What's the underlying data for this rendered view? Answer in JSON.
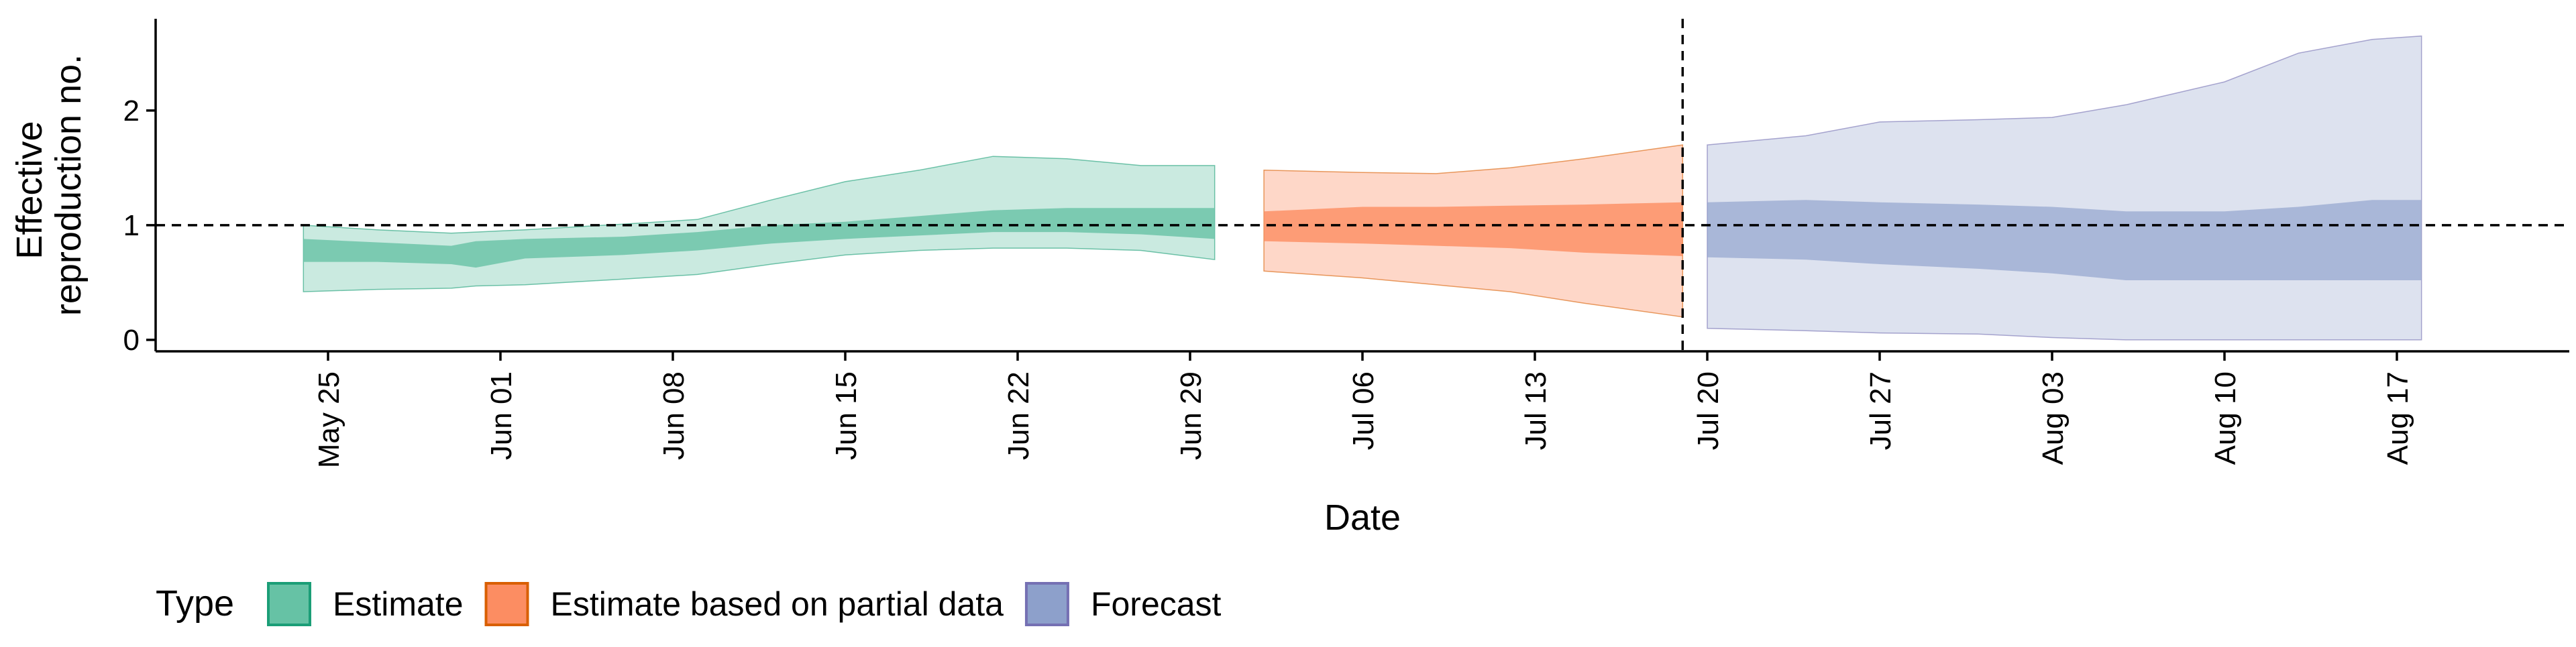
{
  "chart_data": {
    "type": "area",
    "xlabel": "Date",
    "ylabel": [
      "Effective",
      "reproduction no."
    ],
    "x_axis_type": "date",
    "xlim": [
      "2020-05-18",
      "2020-08-24"
    ],
    "ylim": [
      -0.1,
      2.8
    ],
    "y_ticks": [
      0,
      1,
      2
    ],
    "x_ticks": [
      {
        "date": "2020-05-25",
        "label": "May 25"
      },
      {
        "date": "2020-06-01",
        "label": "Jun 01"
      },
      {
        "date": "2020-06-08",
        "label": "Jun 08"
      },
      {
        "date": "2020-06-15",
        "label": "Jun 15"
      },
      {
        "date": "2020-06-22",
        "label": "Jun 22"
      },
      {
        "date": "2020-06-29",
        "label": "Jun 29"
      },
      {
        "date": "2020-07-06",
        "label": "Jul 06"
      },
      {
        "date": "2020-07-13",
        "label": "Jul 13"
      },
      {
        "date": "2020-07-20",
        "label": "Jul 20"
      },
      {
        "date": "2020-07-27",
        "label": "Jul 27"
      },
      {
        "date": "2020-08-03",
        "label": "Aug 03"
      },
      {
        "date": "2020-08-10",
        "label": "Aug 10"
      },
      {
        "date": "2020-08-17",
        "label": "Aug 17"
      }
    ],
    "reference_lines": {
      "horizontal_y": 1,
      "vertical_date": "2020-07-19"
    },
    "grid": false,
    "legend": {
      "title": "Type",
      "position": "bottom"
    },
    "series": [
      {
        "name": "Estimate",
        "fill_color": "#66c2a5",
        "line_color": "#1b9e77",
        "points": [
          {
            "date": "2020-05-24",
            "lower90": 0.42,
            "upper90": 1.0,
            "lower50": 0.68,
            "upper50": 0.88
          },
          {
            "date": "2020-05-27",
            "lower90": 0.44,
            "upper90": 0.96,
            "lower50": 0.68,
            "upper50": 0.85
          },
          {
            "date": "2020-05-30",
            "lower90": 0.45,
            "upper90": 0.93,
            "lower50": 0.66,
            "upper50": 0.82
          },
          {
            "date": "2020-05-31",
            "lower90": 0.47,
            "upper90": 0.94,
            "lower50": 0.63,
            "upper50": 0.86
          },
          {
            "date": "2020-06-02",
            "lower90": 0.48,
            "upper90": 0.96,
            "lower50": 0.71,
            "upper50": 0.88
          },
          {
            "date": "2020-06-06",
            "lower90": 0.53,
            "upper90": 1.01,
            "lower50": 0.74,
            "upper50": 0.9
          },
          {
            "date": "2020-06-09",
            "lower90": 0.57,
            "upper90": 1.05,
            "lower50": 0.78,
            "upper50": 0.94
          },
          {
            "date": "2020-06-12",
            "lower90": 0.66,
            "upper90": 1.22,
            "lower50": 0.84,
            "upper50": 1.0
          },
          {
            "date": "2020-06-15",
            "lower90": 0.74,
            "upper90": 1.38,
            "lower50": 0.88,
            "upper50": 1.03
          },
          {
            "date": "2020-06-18",
            "lower90": 0.78,
            "upper90": 1.48,
            "lower50": 0.91,
            "upper50": 1.08
          },
          {
            "date": "2020-06-21",
            "lower90": 0.8,
            "upper90": 1.6,
            "lower50": 0.94,
            "upper50": 1.13
          },
          {
            "date": "2020-06-24",
            "lower90": 0.8,
            "upper90": 1.58,
            "lower50": 0.94,
            "upper50": 1.15
          },
          {
            "date": "2020-06-27",
            "lower90": 0.78,
            "upper90": 1.52,
            "lower50": 0.92,
            "upper50": 1.15
          },
          {
            "date": "2020-06-30",
            "lower90": 0.7,
            "upper90": 1.52,
            "lower50": 0.88,
            "upper50": 1.15
          }
        ]
      },
      {
        "name": "Estimate based on partial data",
        "fill_color": "#fc8d62",
        "line_color": "#d95f02",
        "points": [
          {
            "date": "2020-07-02",
            "lower90": 0.6,
            "upper90": 1.48,
            "lower50": 0.86,
            "upper50": 1.12
          },
          {
            "date": "2020-07-06",
            "lower90": 0.54,
            "upper90": 1.46,
            "lower50": 0.84,
            "upper50": 1.16
          },
          {
            "date": "2020-07-09",
            "lower90": 0.48,
            "upper90": 1.45,
            "lower50": 0.82,
            "upper50": 1.16
          },
          {
            "date": "2020-07-12",
            "lower90": 0.42,
            "upper90": 1.5,
            "lower50": 0.8,
            "upper50": 1.17
          },
          {
            "date": "2020-07-15",
            "lower90": 0.32,
            "upper90": 1.58,
            "lower50": 0.76,
            "upper50": 1.18
          },
          {
            "date": "2020-07-19",
            "lower90": 0.2,
            "upper90": 1.7,
            "lower50": 0.73,
            "upper50": 1.2
          }
        ]
      },
      {
        "name": "Forecast",
        "fill_color": "#8da0cb",
        "line_color": "#7570b3",
        "points": [
          {
            "date": "2020-07-20",
            "lower90": 0.1,
            "upper90": 1.7,
            "lower50": 0.72,
            "upper50": 1.2
          },
          {
            "date": "2020-07-24",
            "lower90": 0.08,
            "upper90": 1.78,
            "lower50": 0.7,
            "upper50": 1.22
          },
          {
            "date": "2020-07-27",
            "lower90": 0.06,
            "upper90": 1.9,
            "lower50": 0.66,
            "upper50": 1.2
          },
          {
            "date": "2020-07-31",
            "lower90": 0.05,
            "upper90": 1.92,
            "lower50": 0.62,
            "upper50": 1.18
          },
          {
            "date": "2020-08-03",
            "lower90": 0.02,
            "upper90": 1.94,
            "lower50": 0.58,
            "upper50": 1.16
          },
          {
            "date": "2020-08-06",
            "lower90": 0.0,
            "upper90": 2.05,
            "lower50": 0.52,
            "upper50": 1.12
          },
          {
            "date": "2020-08-10",
            "lower90": 0.0,
            "upper90": 2.25,
            "lower50": 0.52,
            "upper50": 1.12
          },
          {
            "date": "2020-08-13",
            "lower90": 0.0,
            "upper90": 2.5,
            "lower50": 0.52,
            "upper50": 1.16
          },
          {
            "date": "2020-08-16",
            "lower90": 0.0,
            "upper90": 2.62,
            "lower50": 0.52,
            "upper50": 1.22
          },
          {
            "date": "2020-08-18",
            "lower90": 0.0,
            "upper90": 2.65,
            "lower50": 0.52,
            "upper50": 1.22
          }
        ]
      }
    ]
  }
}
